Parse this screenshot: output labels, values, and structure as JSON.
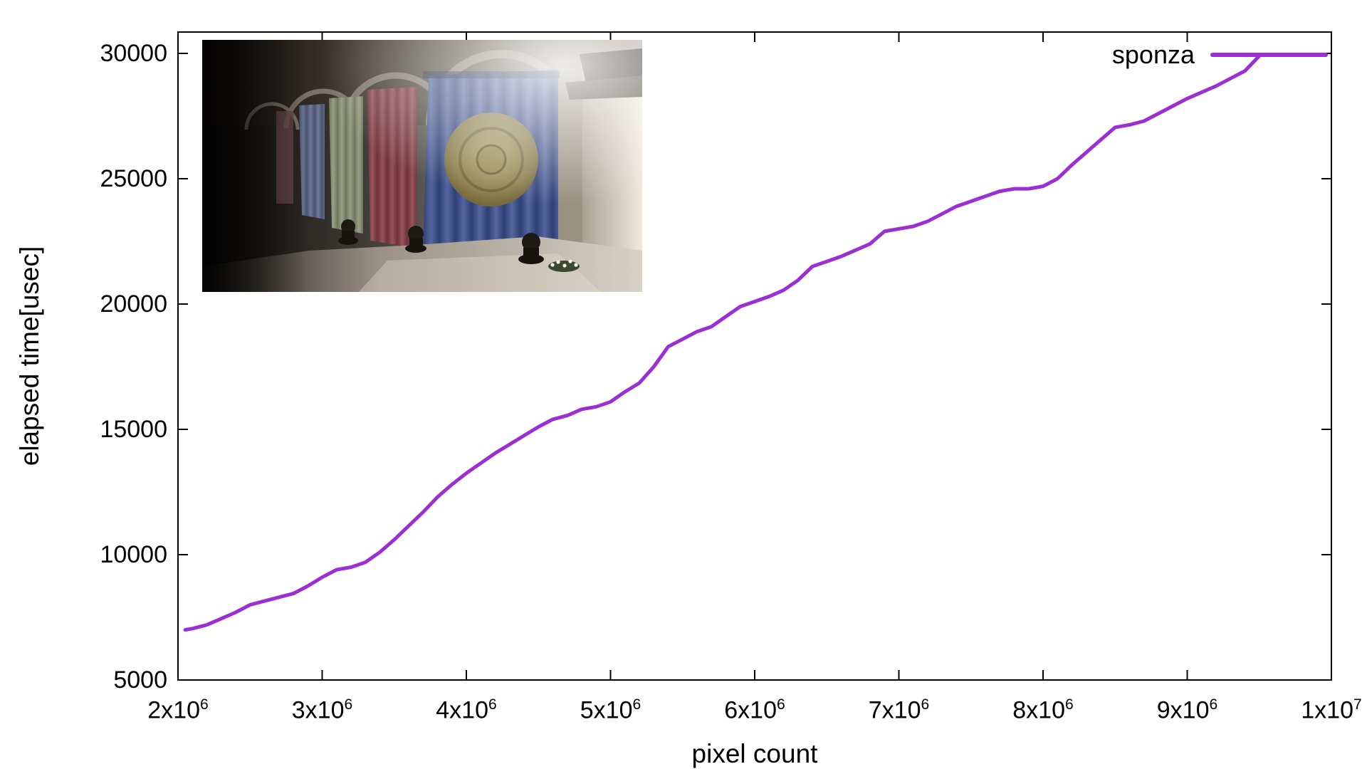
{
  "chart_data": {
    "type": "line",
    "title": "",
    "xlabel": "pixel count",
    "ylabel": "elapsed time[usec]",
    "xlim": [
      2000000,
      10000000
    ],
    "ylim": [
      5000,
      30000
    ],
    "grid": false,
    "legend": {
      "position": "top-right"
    },
    "x_ticks": [
      {
        "mantissa": "2x10",
        "exp": "6",
        "value": 2000000
      },
      {
        "mantissa": "3x10",
        "exp": "6",
        "value": 3000000
      },
      {
        "mantissa": "4x10",
        "exp": "6",
        "value": 4000000
      },
      {
        "mantissa": "5x10",
        "exp": "6",
        "value": 5000000
      },
      {
        "mantissa": "6x10",
        "exp": "6",
        "value": 6000000
      },
      {
        "mantissa": "7x10",
        "exp": "6",
        "value": 7000000
      },
      {
        "mantissa": "8x10",
        "exp": "6",
        "value": 8000000
      },
      {
        "mantissa": "9x10",
        "exp": "6",
        "value": 9000000
      },
      {
        "mantissa": "1x10",
        "exp": "7",
        "value": 10000000
      }
    ],
    "y_ticks": [
      {
        "label": "5000",
        "value": 5000
      },
      {
        "label": "10000",
        "value": 10000
      },
      {
        "label": "15000",
        "value": 15000
      },
      {
        "label": "20000",
        "value": 20000
      },
      {
        "label": "25000",
        "value": 25000
      },
      {
        "label": "30000",
        "value": 30000
      }
    ],
    "series": [
      {
        "name": "sponza",
        "color": "#9b2fd4",
        "x": [
          2050000,
          2100000,
          2200000,
          2300000,
          2400000,
          2500000,
          2600000,
          2700000,
          2800000,
          2900000,
          3000000,
          3100000,
          3200000,
          3300000,
          3400000,
          3500000,
          3600000,
          3700000,
          3800000,
          3900000,
          4000000,
          4100000,
          4200000,
          4300000,
          4400000,
          4500000,
          4600000,
          4700000,
          4800000,
          4900000,
          5000000,
          5100000,
          5200000,
          5300000,
          5400000,
          5500000,
          5600000,
          5700000,
          5800000,
          5900000,
          6000000,
          6100000,
          6200000,
          6300000,
          6400000,
          6500000,
          6600000,
          6700000,
          6800000,
          6900000,
          7000000,
          7100000,
          7200000,
          7300000,
          7400000,
          7500000,
          7600000,
          7700000,
          7800000,
          7900000,
          8000000,
          8100000,
          8200000,
          8300000,
          8400000,
          8500000,
          8600000,
          8700000,
          8800000,
          8900000,
          9000000,
          9100000,
          9200000,
          9300000,
          9400000,
          9500000
        ],
        "y": [
          7000,
          7050,
          7200,
          7450,
          7700,
          8000,
          8150,
          8300,
          8450,
          8750,
          9100,
          9400,
          9500,
          9700,
          10100,
          10600,
          11150,
          11700,
          12300,
          12800,
          13250,
          13650,
          14050,
          14400,
          14750,
          15100,
          15400,
          15550,
          15800,
          15900,
          16100,
          16500,
          16850,
          17500,
          18300,
          18600,
          18900,
          19100,
          19500,
          19900,
          20100,
          20300,
          20550,
          20950,
          21500,
          21700,
          21900,
          22150,
          22400,
          22900,
          23000,
          23100,
          23300,
          23600,
          23900,
          24100,
          24300,
          24500,
          24600,
          24600,
          24700,
          25000,
          25550,
          26050,
          26550,
          27050,
          27150,
          27300,
          27600,
          27900,
          28200,
          28450,
          28700,
          29000,
          29300,
          29900
        ]
      }
    ]
  },
  "inset": {
    "scene": "sponza"
  },
  "colors": {
    "line": "#9b2fd4",
    "text": "#000000",
    "border": "#000000",
    "background": "#ffffff"
  }
}
